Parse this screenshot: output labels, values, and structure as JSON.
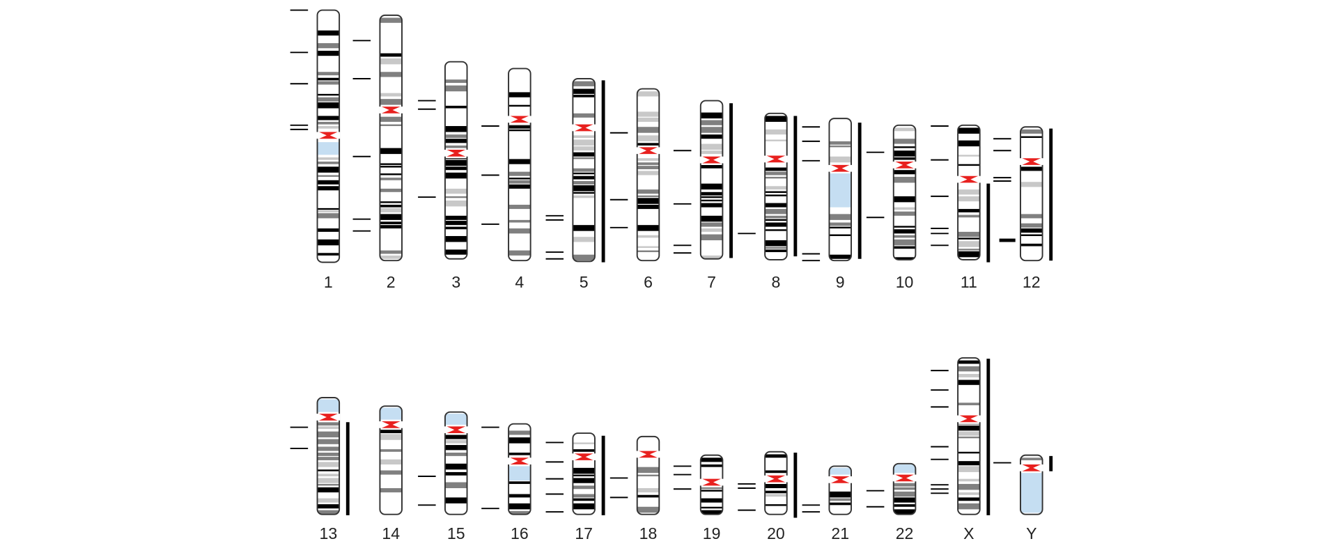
{
  "chromosomes": [
    {
      "label": "1"
    },
    {
      "label": "2"
    },
    {
      "label": "3"
    },
    {
      "label": "4"
    },
    {
      "label": "5"
    },
    {
      "label": "6"
    },
    {
      "label": "7"
    },
    {
      "label": "8"
    },
    {
      "label": "9"
    },
    {
      "label": "10"
    },
    {
      "label": "11"
    },
    {
      "label": "12"
    },
    {
      "label": "13"
    },
    {
      "label": "14"
    },
    {
      "label": "15"
    },
    {
      "label": "16"
    },
    {
      "label": "17"
    },
    {
      "label": "18"
    },
    {
      "label": "19"
    },
    {
      "label": "20"
    },
    {
      "label": "21"
    },
    {
      "label": "22"
    },
    {
      "label": "X"
    },
    {
      "label": "Y"
    }
  ],
  "colors": {
    "centromere": "#e8201e",
    "heterochromatin": "#c5def2",
    "band_dark": "#000000",
    "band_gray": "#808080",
    "outline": "#333333",
    "marker": "#000000"
  }
}
